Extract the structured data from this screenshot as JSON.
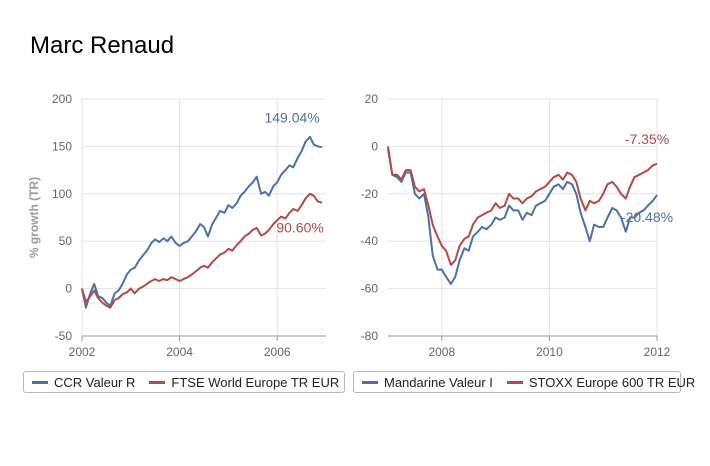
{
  "page_title": "Marc Renaud",
  "colors": {
    "blue": "#4a72a8",
    "red": "#b24a48",
    "grid": "#e4e4e4",
    "axis": "#999999"
  },
  "chart_data": [
    {
      "type": "line",
      "ylabel": "% growth (TR)",
      "ylim": [
        -50,
        200
      ],
      "yticks": [
        -50,
        0,
        50,
        100,
        150,
        200
      ],
      "xlim": [
        2002.0,
        2007.0
      ],
      "xticks": [
        2002,
        2004,
        2006
      ],
      "grid": true,
      "legend": "bottom",
      "series": [
        {
          "name": "CCR Valeur R",
          "color": "#4a72a8",
          "end_label": "149.04%",
          "x": [
            2002.0,
            2002.08,
            2002.17,
            2002.25,
            2002.33,
            2002.42,
            2002.5,
            2002.58,
            2002.67,
            2002.75,
            2002.83,
            2002.92,
            2003.0,
            2003.08,
            2003.17,
            2003.25,
            2003.33,
            2003.42,
            2003.5,
            2003.58,
            2003.67,
            2003.75,
            2003.83,
            2003.92,
            2004.0,
            2004.08,
            2004.17,
            2004.25,
            2004.33,
            2004.42,
            2004.5,
            2004.58,
            2004.67,
            2004.75,
            2004.83,
            2004.92,
            2005.0,
            2005.08,
            2005.17,
            2005.25,
            2005.33,
            2005.42,
            2005.5,
            2005.58,
            2005.67,
            2005.75,
            2005.83,
            2005.92,
            2006.0,
            2006.08,
            2006.17,
            2006.25,
            2006.33,
            2006.42,
            2006.5,
            2006.58,
            2006.67,
            2006.75,
            2006.83,
            2006.92
          ],
          "values": [
            0,
            -20,
            -5,
            5,
            -8,
            -10,
            -15,
            -18,
            -5,
            -2,
            5,
            15,
            20,
            22,
            30,
            35,
            40,
            48,
            52,
            49,
            53,
            50,
            55,
            48,
            45,
            48,
            50,
            55,
            60,
            68,
            65,
            55,
            68,
            75,
            82,
            80,
            88,
            85,
            90,
            98,
            102,
            108,
            112,
            118,
            100,
            102,
            98,
            108,
            112,
            120,
            125,
            130,
            128,
            138,
            145,
            155,
            160,
            152,
            150,
            149.04
          ]
        },
        {
          "name": "FTSE World Europe TR EUR",
          "color": "#b24a48",
          "end_label": "90.60%",
          "x": [
            2002.0,
            2002.08,
            2002.17,
            2002.25,
            2002.33,
            2002.42,
            2002.5,
            2002.58,
            2002.67,
            2002.75,
            2002.83,
            2002.92,
            2003.0,
            2003.08,
            2003.17,
            2003.25,
            2003.33,
            2003.42,
            2003.5,
            2003.58,
            2003.67,
            2003.75,
            2003.83,
            2003.92,
            2004.0,
            2004.08,
            2004.17,
            2004.25,
            2004.33,
            2004.42,
            2004.5,
            2004.58,
            2004.67,
            2004.75,
            2004.83,
            2004.92,
            2005.0,
            2005.08,
            2005.17,
            2005.25,
            2005.33,
            2005.42,
            2005.5,
            2005.58,
            2005.67,
            2005.75,
            2005.83,
            2005.92,
            2006.0,
            2006.08,
            2006.17,
            2006.25,
            2006.33,
            2006.42,
            2006.5,
            2006.58,
            2006.67,
            2006.75,
            2006.83,
            2006.92
          ],
          "values": [
            0,
            -14,
            -8,
            -2,
            -10,
            -15,
            -18,
            -20,
            -12,
            -10,
            -6,
            -4,
            0,
            -5,
            0,
            2,
            5,
            8,
            10,
            8,
            10,
            9,
            12,
            10,
            8,
            10,
            12,
            15,
            18,
            22,
            24,
            22,
            28,
            32,
            36,
            38,
            42,
            40,
            46,
            50,
            55,
            58,
            62,
            64,
            56,
            58,
            62,
            68,
            72,
            76,
            74,
            80,
            84,
            82,
            88,
            95,
            100,
            98,
            92,
            90.6
          ]
        }
      ]
    },
    {
      "type": "line",
      "ylabel": "",
      "ylim": [
        -80,
        20
      ],
      "yticks": [
        -80,
        -60,
        -40,
        -20,
        0,
        20
      ],
      "xlim": [
        2007.0,
        2012.0
      ],
      "xticks": [
        2008,
        2010,
        2012
      ],
      "grid": true,
      "legend": "bottom",
      "series": [
        {
          "name": "Mandarine Valeur I",
          "color": "#4a72a8",
          "end_label": "-20.48%",
          "x": [
            2007.0,
            2007.08,
            2007.17,
            2007.25,
            2007.33,
            2007.42,
            2007.5,
            2007.58,
            2007.67,
            2007.75,
            2007.83,
            2007.92,
            2008.0,
            2008.08,
            2008.17,
            2008.25,
            2008.33,
            2008.42,
            2008.5,
            2008.58,
            2008.67,
            2008.75,
            2008.83,
            2008.92,
            2009.0,
            2009.08,
            2009.17,
            2009.25,
            2009.33,
            2009.42,
            2009.5,
            2009.58,
            2009.67,
            2009.75,
            2009.83,
            2009.92,
            2010.0,
            2010.08,
            2010.17,
            2010.25,
            2010.33,
            2010.42,
            2010.5,
            2010.58,
            2010.67,
            2010.75,
            2010.83,
            2010.92,
            2011.0,
            2011.08,
            2011.17,
            2011.25,
            2011.33,
            2011.42,
            2011.5,
            2011.58,
            2011.67,
            2011.75,
            2011.83,
            2011.92,
            2012.0
          ],
          "values": [
            -1,
            -12,
            -13,
            -15,
            -11,
            -11,
            -20,
            -22,
            -20,
            -30,
            -46,
            -52,
            -52,
            -55,
            -58,
            -55,
            -48,
            -43,
            -44,
            -38,
            -36,
            -34,
            -35,
            -33,
            -30,
            -31,
            -30,
            -25,
            -27,
            -27,
            -31,
            -28,
            -29,
            -25,
            -24,
            -23,
            -20,
            -17,
            -16,
            -18,
            -15,
            -16,
            -20,
            -28,
            -34,
            -40,
            -33,
            -34,
            -34,
            -30,
            -26,
            -27,
            -30,
            -36,
            -30,
            -30,
            -28,
            -27,
            -25,
            -23,
            -20.48
          ]
        },
        {
          "name": "STOXX Europe 600 TR EUR",
          "color": "#b24a48",
          "end_label": "-7.35%",
          "x": [
            2007.0,
            2007.08,
            2007.17,
            2007.25,
            2007.33,
            2007.42,
            2007.5,
            2007.58,
            2007.67,
            2007.75,
            2007.83,
            2007.92,
            2008.0,
            2008.08,
            2008.17,
            2008.25,
            2008.33,
            2008.42,
            2008.5,
            2008.58,
            2008.67,
            2008.75,
            2008.83,
            2008.92,
            2009.0,
            2009.08,
            2009.17,
            2009.25,
            2009.33,
            2009.42,
            2009.5,
            2009.58,
            2009.67,
            2009.75,
            2009.83,
            2009.92,
            2010.0,
            2010.08,
            2010.17,
            2010.25,
            2010.33,
            2010.42,
            2010.5,
            2010.58,
            2010.67,
            2010.75,
            2010.83,
            2010.92,
            2011.0,
            2011.08,
            2011.17,
            2011.25,
            2011.33,
            2011.42,
            2011.5,
            2011.58,
            2011.67,
            2011.75,
            2011.83,
            2011.92,
            2012.0
          ],
          "values": [
            0,
            -12,
            -12,
            -14,
            -10,
            -10,
            -17,
            -19,
            -18,
            -25,
            -33,
            -38,
            -42,
            -44,
            -50,
            -48,
            -42,
            -39,
            -38,
            -33,
            -30,
            -29,
            -28,
            -27,
            -24,
            -26,
            -25,
            -20,
            -22,
            -22,
            -24,
            -22,
            -21,
            -19,
            -18,
            -17,
            -15,
            -13,
            -12,
            -14,
            -11,
            -12,
            -15,
            -22,
            -27,
            -23,
            -24,
            -23,
            -20,
            -16,
            -15,
            -17,
            -20,
            -22,
            -17,
            -13,
            -12,
            -11,
            -10,
            -8,
            -7.35
          ]
        }
      ]
    }
  ]
}
